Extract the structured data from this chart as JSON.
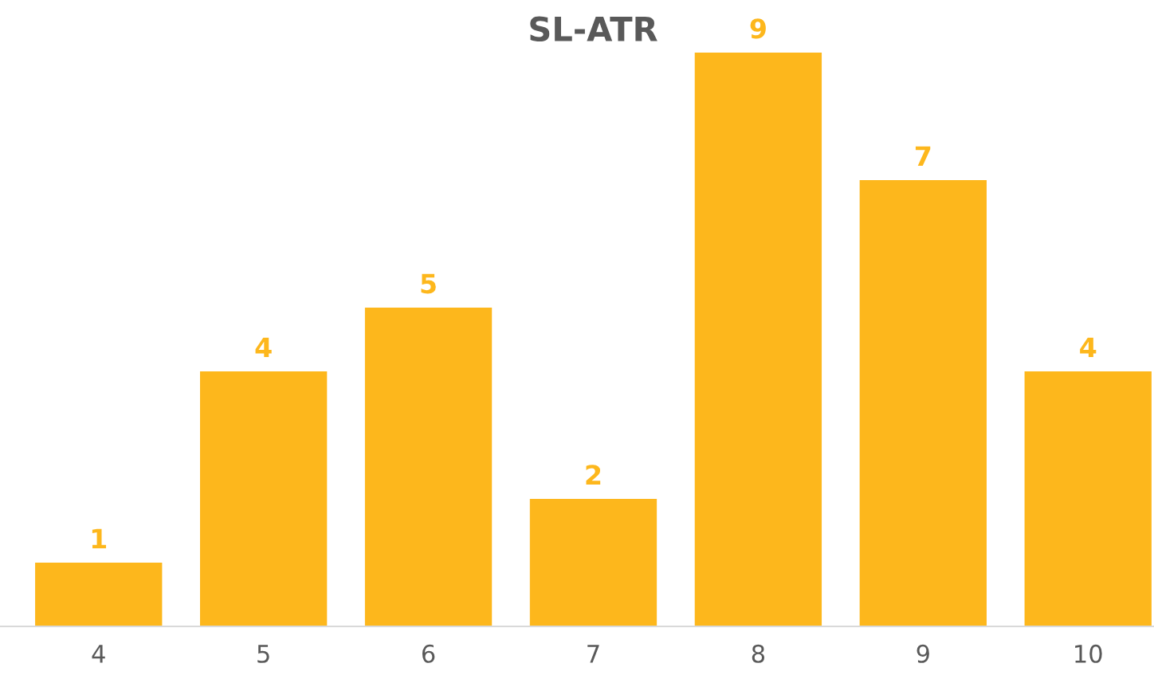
{
  "chart_data": {
    "type": "bar",
    "title": "SL-ATR",
    "categories": [
      "4",
      "5",
      "6",
      "7",
      "8",
      "9",
      "10"
    ],
    "values": [
      1,
      4,
      5,
      2,
      9,
      7,
      4
    ],
    "color": "#fdb71c",
    "data_labels": true,
    "grid": false,
    "legend": false
  }
}
